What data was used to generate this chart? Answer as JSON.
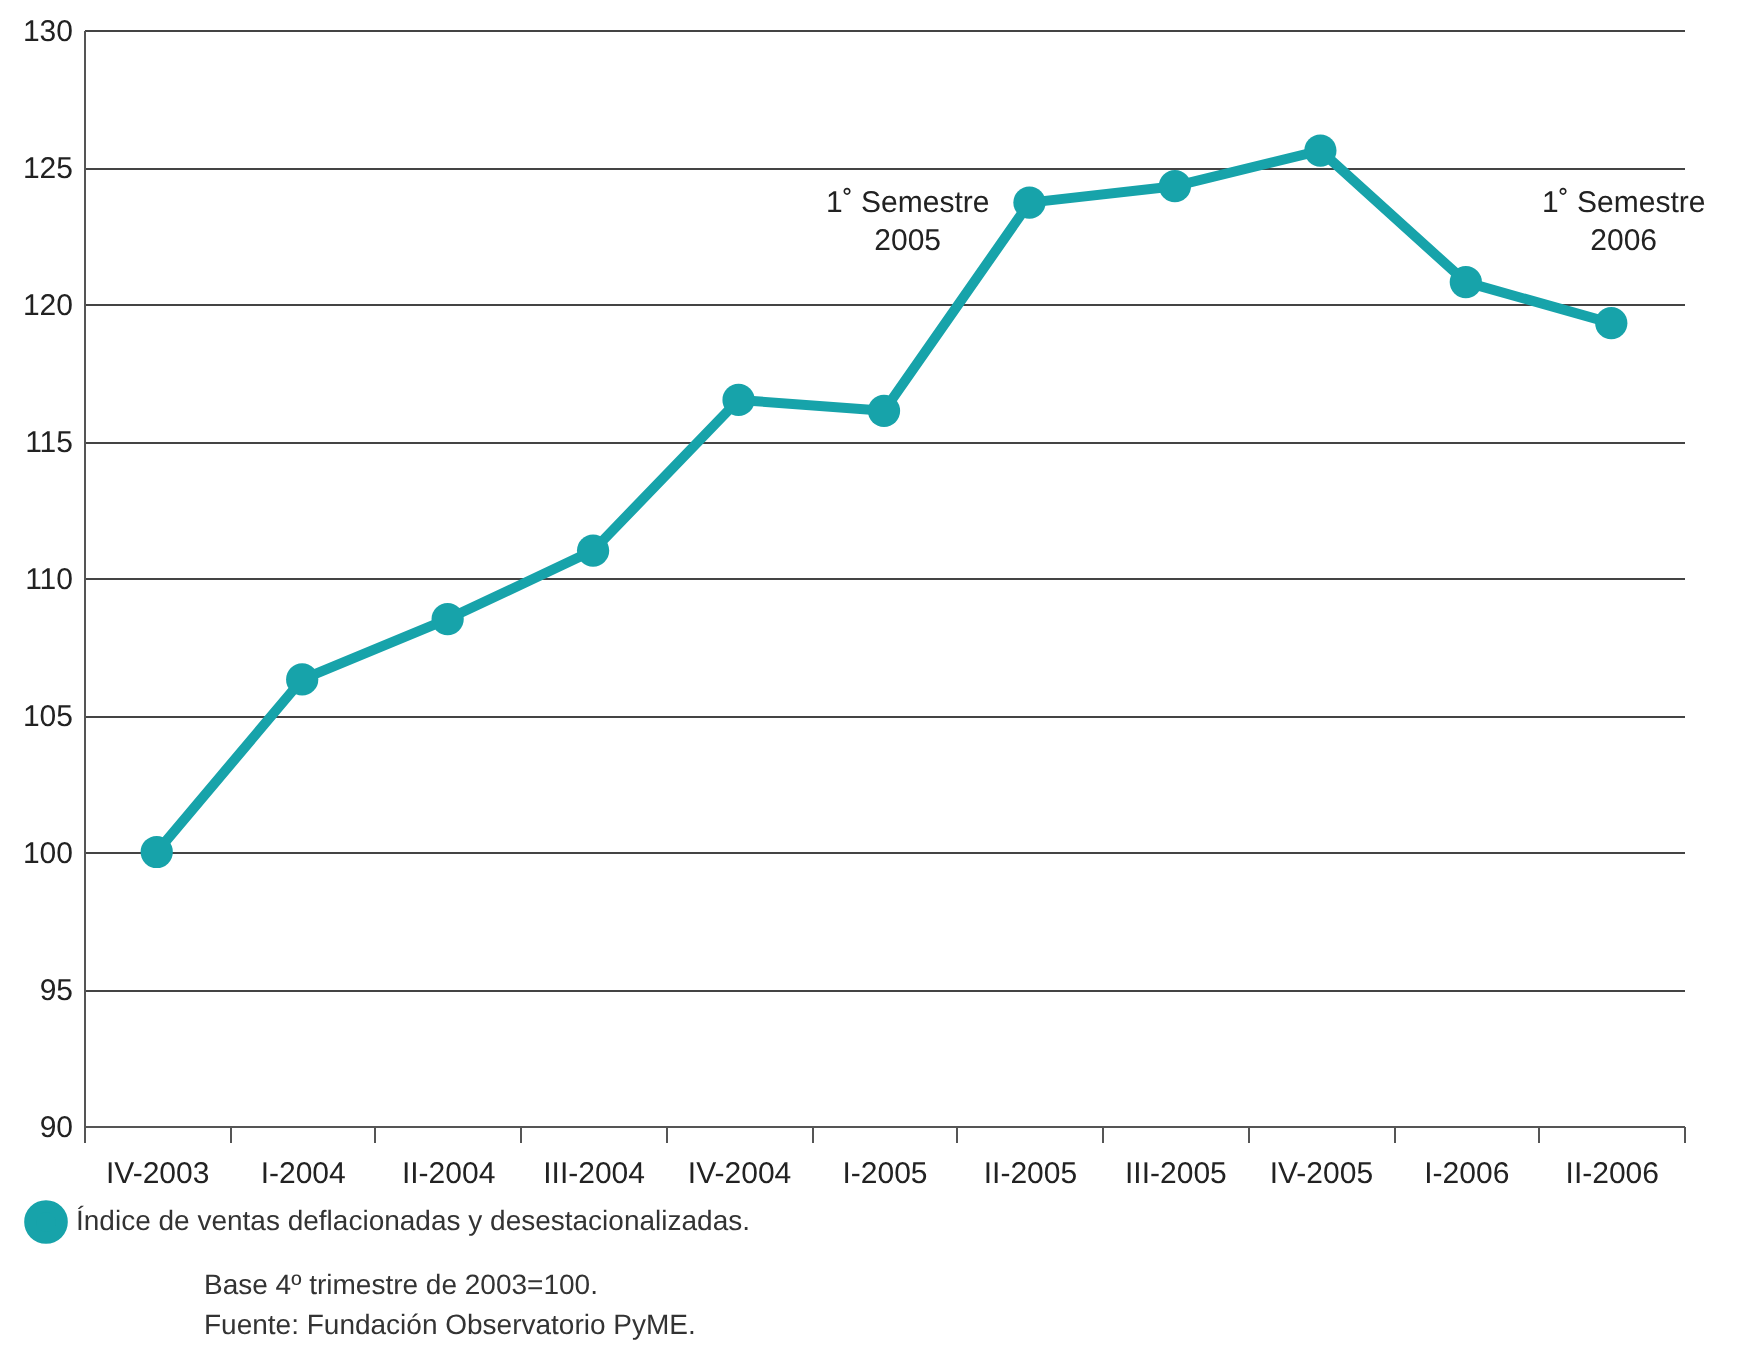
{
  "chart_data": {
    "type": "line",
    "categories": [
      "IV-2003",
      "I-2004",
      "II-2004",
      "III-2004",
      "IV-2004",
      "I-2005",
      "II-2005",
      "III-2005",
      "IV-2005",
      "I-2006",
      "II-2006"
    ],
    "series": [
      {
        "name": "Índice de ventas deflacionadas y desestacionalizadas.",
        "color": "#17a3aa",
        "values": [
          100,
          106.3,
          108.5,
          111,
          116.5,
          116.1,
          123.7,
          124.3,
          125.6,
          120.8,
          119.3
        ]
      }
    ],
    "ylim": [
      90,
      130
    ],
    "yticks": [
      90,
      95,
      100,
      105,
      110,
      115,
      120,
      125,
      130
    ],
    "grid": "y",
    "legend": "bottom left",
    "marker": "circle",
    "line_style": "solid",
    "annotations": [
      "1˚ Semestre\n2005",
      "1˚ Semestre\n2006",
      "Base 4º trimestre de 2003=100.",
      "Fuente: Fundación Observatorio PyME."
    ]
  }
}
